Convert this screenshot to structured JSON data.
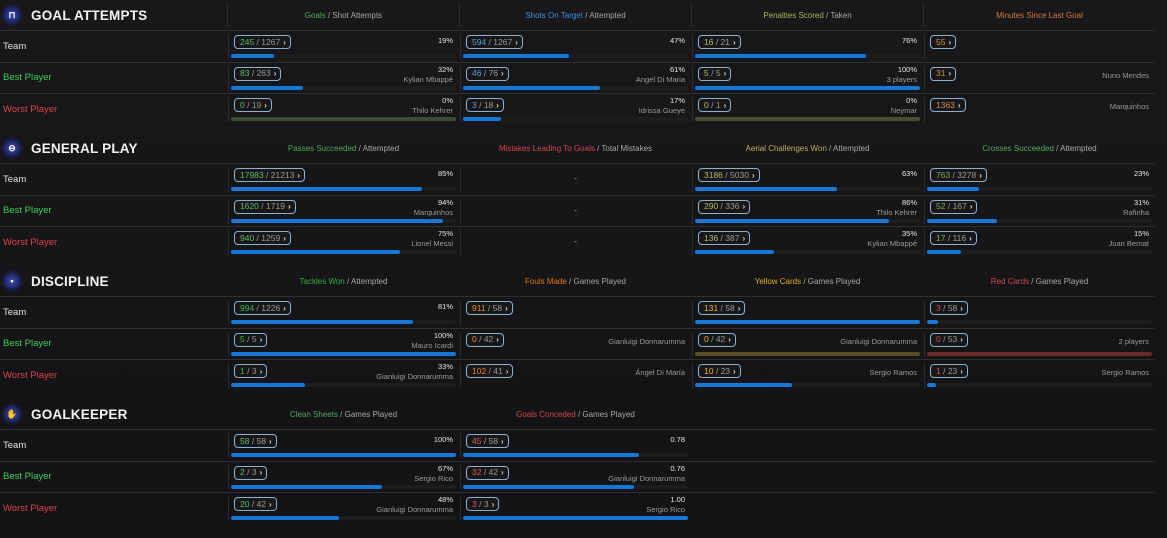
{
  "colors": {
    "bar": "#1578d6",
    "zero_green": "#3c4e38",
    "zero_olive": "#4e4d30",
    "zero_gold": "#5c4e24",
    "zero_red": "#6a2a2a",
    "team_label": "#e2e2e2",
    "best_label": "#3ecf5c",
    "worst_label": "#d9434d"
  },
  "row_labels": {
    "team": "Team",
    "best": "Best Player",
    "worst": "Worst Player"
  },
  "sections": [
    {
      "title": "GOAL ATTEMPTS",
      "icon": "goal-icon",
      "icon_glyph": "⊓",
      "columns": [
        {
          "head_hl": "Goals",
          "head_hl_color": "#4fa85c",
          "head_rest": " / Shot Attempts",
          "value_color": "#63b86e",
          "zero_color": "#3c4e38",
          "rows": [
            {
              "num": "245",
              "den": "1267",
              "pct": "19%",
              "player": "",
              "fraction": 0.19
            },
            {
              "num": "83",
              "den": "263",
              "pct": "32%",
              "player": "Kylian Mbappé",
              "fraction": 0.32
            },
            {
              "num": "0",
              "den": "19",
              "pct": "0%",
              "player": "Thilo Kehrer",
              "fraction": 0
            }
          ]
        },
        {
          "head_hl": "Shots On Target",
          "head_hl_color": "#3f8fd6",
          "head_rest": " / Attempted",
          "value_color": "#5e9fd8",
          "zero_color": "#2a3d55",
          "rows": [
            {
              "num": "594",
              "den": "1267",
              "pct": "47%",
              "player": "",
              "fraction": 0.47
            },
            {
              "num": "46",
              "den": "76",
              "pct": "61%",
              "player": "Angel Di Maria",
              "fraction": 0.61
            },
            {
              "num": "3",
              "den": "18",
              "pct": "17%",
              "player": "Idrissa Gueye",
              "fraction": 0.17
            }
          ]
        },
        {
          "head_hl": "Penalties Scored",
          "head_hl_color": "#b3b35a",
          "head_rest": " / Taken",
          "value_color": "#b9b96a",
          "zero_color": "#4e4d30",
          "rows": [
            {
              "num": "16",
              "den": "21",
              "pct": "76%",
              "player": "",
              "fraction": 0.76
            },
            {
              "num": "5",
              "den": "5",
              "pct": "100%",
              "player": "3 players",
              "fraction": 1.0
            },
            {
              "num": "0",
              "den": "1",
              "pct": "0%",
              "player": "Neymar",
              "fraction": 0
            }
          ]
        },
        {
          "head_hl": "Minutes Since Last Goal",
          "head_hl_color": "#d07a3a",
          "head_rest": "",
          "value_color": "#d98a4a",
          "single": true,
          "rows": [
            {
              "num": "55",
              "player": ""
            },
            {
              "num": "31",
              "player": "Nuno Mendes"
            },
            {
              "num": "1363",
              "player": "Marquinhos"
            }
          ]
        }
      ]
    },
    {
      "title": "GENERAL PLAY",
      "icon": "general-play-icon",
      "icon_glyph": "⊖",
      "columns": [
        {
          "head_hl": "Passes Succeeded",
          "head_hl_color": "#4fa85c",
          "head_rest": " / Attempted",
          "value_color": "#63b86e",
          "zero_color": "#3c4e38",
          "rows": [
            {
              "num": "17983",
              "den": "21213",
              "pct": "85%",
              "player": "",
              "fraction": 0.85
            },
            {
              "num": "1620",
              "den": "1719",
              "pct": "94%",
              "player": "Marquinhos",
              "fraction": 0.94
            },
            {
              "num": "940",
              "den": "1259",
              "pct": "75%",
              "player": "Lionel Messi",
              "fraction": 0.75
            }
          ]
        },
        {
          "head_hl": "Mistakes Leading To Goals",
          "head_hl_color": "#d0474f",
          "head_rest": " / Total Mistakes",
          "empty": true,
          "rows": [
            {
              "dash": "-"
            },
            {
              "dash": "-"
            },
            {
              "dash": "-"
            }
          ]
        },
        {
          "head_hl": "Aerial Challenges Won",
          "head_hl_color": "#b3b35a",
          "head_rest": " / Attempted",
          "value_color": "#b9b96a",
          "zero_color": "#4e4d30",
          "rows": [
            {
              "num": "3186",
              "den": "5030",
              "pct": "63%",
              "player": "",
              "fraction": 0.63
            },
            {
              "num": "290",
              "den": "336",
              "pct": "86%",
              "player": "Thilo Kehrer",
              "fraction": 0.86
            },
            {
              "num": "136",
              "den": "387",
              "pct": "35%",
              "player": "Kylian Mbappé",
              "fraction": 0.35
            }
          ]
        },
        {
          "head_hl": "Crosses Succeeded",
          "head_hl_color": "#4fa85c",
          "head_rest": " / Attempted",
          "value_color": "#7fae5c",
          "zero_color": "#3c4e38",
          "rows": [
            {
              "num": "763",
              "den": "3278",
              "pct": "23%",
              "player": "",
              "fraction": 0.23
            },
            {
              "num": "52",
              "den": "167",
              "pct": "31%",
              "player": "Rafinha",
              "fraction": 0.31
            },
            {
              "num": "17",
              "den": "116",
              "pct": "15%",
              "player": "Juan Bernat",
              "fraction": 0.15
            }
          ]
        }
      ]
    },
    {
      "title": "DISCIPLINE",
      "icon": "discipline-card-icon",
      "icon_glyph": "▪",
      "columns": [
        {
          "head_hl": "Tackles Won",
          "head_hl_color": "#2fae3e",
          "head_rest": " / Attempted",
          "value_color": "#3bb34a",
          "zero_color": "#3c4e38",
          "rows": [
            {
              "num": "994",
              "den": "1226",
              "pct": "81%",
              "player": "",
              "fraction": 0.81
            },
            {
              "num": "5",
              "den": "5",
              "pct": "100%",
              "player": "Mauro Icardi",
              "fraction": 1.0
            },
            {
              "num": "1",
              "den": "3",
              "pct": "33%",
              "player": "Gianluigi Donnarumma",
              "fraction": 0.33
            }
          ]
        },
        {
          "head_hl": "Fouls Made",
          "head_hl_color": "#e07a1f",
          "head_rest": " / Games Played",
          "value_color": "#e8822a",
          "no_bar": true,
          "rows": [
            {
              "num": "911",
              "den": "58",
              "player": ""
            },
            {
              "num": "0",
              "den": "42",
              "player": "Gianluigi Donnarumma"
            },
            {
              "num": "102",
              "den": "41",
              "player": "Ángel Di María"
            }
          ]
        },
        {
          "head_hl": "Yellow Cards",
          "head_hl_color": "#e0b220",
          "head_rest": " / Games Played",
          "value_color": "#e6b52a",
          "zero_color": "#5c4e24",
          "rows": [
            {
              "num": "131",
              "den": "58",
              "pct": "",
              "player": "",
              "fraction": 1.0
            },
            {
              "num": "0",
              "den": "42",
              "pct": "",
              "player": "Gianluigi Donnarumma",
              "fraction": 0
            },
            {
              "num": "10",
              "den": "23",
              "pct": "",
              "player": "Sergio Ramos",
              "fraction": 0.43
            }
          ]
        },
        {
          "head_hl": "Red Cards",
          "head_hl_color": "#d0474f",
          "head_rest": " / Games Played",
          "value_color": "#d84a4a",
          "zero_color": "#6a2a2a",
          "rows": [
            {
              "num": "3",
              "den": "58",
              "pct": "",
              "player": "",
              "fraction": 0.05
            },
            {
              "num": "0",
              "den": "53",
              "pct": "",
              "player": "2 players",
              "fraction": 0
            },
            {
              "num": "1",
              "den": "23",
              "pct": "",
              "player": "Sergio Ramos",
              "fraction": 0.04
            }
          ]
        }
      ]
    },
    {
      "title": "GOALKEEPER",
      "icon": "goalkeeper-glove-icon",
      "icon_glyph": "✋",
      "columns": [
        {
          "head_hl": "Clean Sheets",
          "head_hl_color": "#4fa85c",
          "head_rest": " / Games Played",
          "value_color": "#63b86e",
          "zero_color": "#3c4e38",
          "rows": [
            {
              "num": "58",
              "den": "58",
              "pct": "100%",
              "player": "",
              "fraction": 1.0
            },
            {
              "num": "2",
              "den": "3",
              "pct": "67%",
              "player": "Sergio Rico",
              "fraction": 0.67
            },
            {
              "num": "20",
              "den": "42",
              "pct": "48%",
              "player": "Gianluigi Donnarumma",
              "fraction": 0.48
            }
          ]
        },
        {
          "head_hl": "Goals Conceded",
          "head_hl_color": "#d0474f",
          "head_rest": " / Games Played",
          "value_color": "#d85a5a",
          "zero_color": "#6a2a2a",
          "rows": [
            {
              "num": "45",
              "den": "58",
              "pct": "0.78",
              "player": "",
              "fraction": 0.78
            },
            {
              "num": "32",
              "den": "42",
              "pct": "0.76",
              "player": "Gianluigi Donnarumma",
              "fraction": 0.76
            },
            {
              "num": "3",
              "den": "3",
              "pct": "1.00",
              "player": "Sergio Rico",
              "fraction": 1.0
            }
          ]
        }
      ]
    }
  ]
}
